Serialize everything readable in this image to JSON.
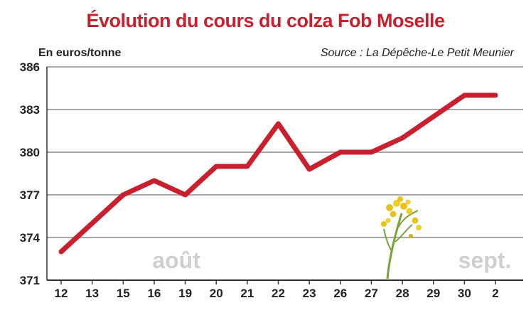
{
  "chart_data": {
    "type": "line",
    "title": "Évolution du cours du colza Fob Moselle",
    "unit_label": "En euros/tonne",
    "source": "Source : La Dépêche-Le Petit Meunier",
    "categories": [
      "12",
      "13",
      "15",
      "16",
      "19",
      "20",
      "21",
      "22",
      "23",
      "26",
      "27",
      "28",
      "29",
      "30",
      "2"
    ],
    "series": [
      {
        "values": [
          373,
          375,
          377,
          378,
          377,
          379,
          379,
          382,
          378.8,
          380,
          380,
          381,
          382.5,
          384,
          384
        ]
      }
    ],
    "ylim": [
      371,
      386
    ],
    "yticks": [
      371,
      374,
      377,
      380,
      383,
      386
    ],
    "month_labels": [
      "août",
      "sept."
    ],
    "grid": true,
    "line_color": "#c8202e",
    "title_color": "#c8202e"
  }
}
